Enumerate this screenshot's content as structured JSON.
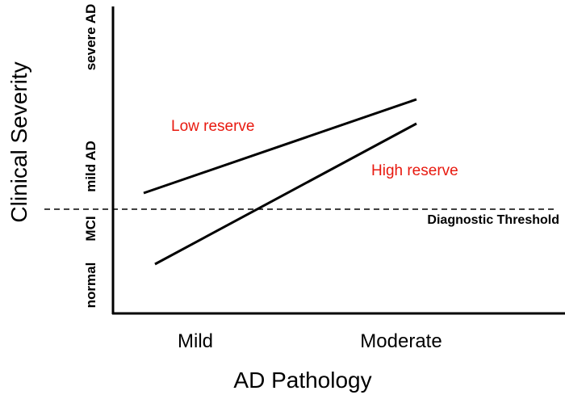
{
  "figure": {
    "y_axis_title": "Clinical Severity",
    "x_axis_title": "AD Pathology",
    "y_ticks": [
      "severe AD",
      "mild AD",
      "MCI",
      "normal"
    ],
    "x_ticks": [
      "Mild",
      "Moderate"
    ],
    "threshold_label": "Diagnostic Threshold",
    "colors": {
      "line_black": "#000000",
      "annotation_red": "#e8190f",
      "background": "#ffffff"
    }
  },
  "chart_data": {
    "type": "line",
    "title": "",
    "xlabel": "AD Pathology",
    "ylabel": "Clinical Severity",
    "x_categories": [
      "Mild",
      "Moderate"
    ],
    "y_ordinal_scale": [
      "normal",
      "MCI",
      "mild AD",
      "severe AD"
    ],
    "y_ordinal_values": {
      "normal": 0,
      "MCI": 1,
      "mild AD": 2,
      "severe AD": 3
    },
    "grid": false,
    "legend_position": "inline-labels",
    "series": [
      {
        "name": "Low reserve",
        "x": [
          "Mild",
          "Moderate"
        ],
        "y_severity": [
          1.6,
          2.5
        ],
        "line_color": "#000000",
        "label_color": "#e8190f"
      },
      {
        "name": "High reserve",
        "x": [
          "Mild",
          "Moderate"
        ],
        "y_severity": [
          0.4,
          2.3
        ],
        "line_color": "#000000",
        "label_color": "#e8190f"
      }
    ],
    "annotations": [
      {
        "name": "Diagnostic Threshold",
        "type": "dashed-horizontal-line",
        "y_severity": 1.3,
        "position": "between MCI and mild AD"
      }
    ],
    "pixel_geometry": {
      "y_axis": {
        "x1": 140,
        "y1": 8,
        "x2": 140,
        "y2": 389,
        "w": 3
      },
      "x_axis": {
        "x1": 139,
        "y1": 388,
        "x2": 700,
        "y2": 388,
        "w": 3
      },
      "threshold": {
        "x1": 55,
        "y1": 259,
        "x2": 686,
        "y2": 259,
        "w": 1.5,
        "dash": "7 5"
      },
      "low_reserve": {
        "x1": 178,
        "y1": 239,
        "x2": 516,
        "y2": 123,
        "w": 3
      },
      "high_reserve": {
        "x1": 192,
        "y1": 327,
        "x2": 516,
        "y2": 153,
        "w": 3
      }
    }
  }
}
